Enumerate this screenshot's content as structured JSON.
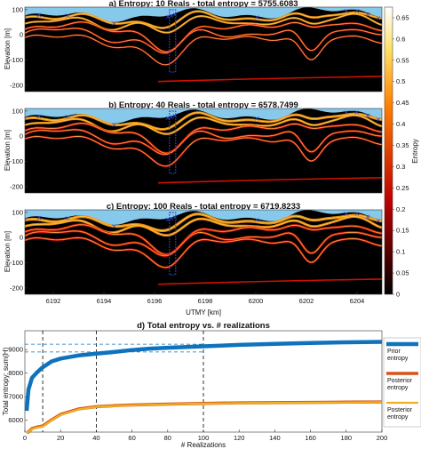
{
  "panels": [
    {
      "title": "a) Entropy: 10 Reals - total entropy = 5755.6083"
    },
    {
      "title": "b) Entropy: 40 Reals - total entropy = 6578.7499"
    },
    {
      "title": "c) Entropy: 100 Reals - total entropy = 6719.8233"
    }
  ],
  "section_ylabel": "Elevation [m]",
  "section_yticks": [
    "100",
    "0",
    "-100",
    "-200"
  ],
  "section_xlabel": "UTMY [km]",
  "section_xticks": [
    "6192",
    "6194",
    "6196",
    "6198",
    "6200",
    "6202",
    "6204"
  ],
  "colorbar": {
    "label": "Entropy",
    "ticks": [
      "0.65",
      "0.6",
      "0.55",
      "0.5",
      "0.45",
      "0.4",
      "0.35",
      "0.3",
      "0.25",
      "0.2",
      "0.15",
      "0.1",
      "0.05",
      "0"
    ]
  },
  "colors": {
    "sky": "#86c9eb",
    "ground": "#000000",
    "marker": "#3344cc",
    "prior": "#0f72bd",
    "posterior_orange": "#d95319",
    "posterior_yellow": "#edb120"
  },
  "chart_data": {
    "type": "line",
    "title": "d) Total entropy vs. # realizations",
    "xlabel": "# Realizations",
    "ylabel": "Total entropy: sum(H)",
    "xlim": [
      0,
      200
    ],
    "ylim": [
      5500,
      9800
    ],
    "xticks": [
      "0",
      "20",
      "40",
      "60",
      "80",
      "100",
      "120",
      "140",
      "160",
      "180",
      "200"
    ],
    "yticks": [
      "6000",
      "7000",
      "8000",
      "9000"
    ],
    "x": [
      1,
      2,
      4,
      7,
      10,
      15,
      20,
      30,
      40,
      50,
      60,
      70,
      80,
      100,
      120,
      140,
      160,
      180,
      200
    ],
    "series": [
      {
        "name": "Prior entropy",
        "values": [
          6400,
          7300,
          7800,
          8050,
          8250,
          8500,
          8620,
          8750,
          8830,
          8900,
          8980,
          9040,
          9080,
          9140,
          9200,
          9240,
          9280,
          9310,
          9330
        ]
      },
      {
        "name": "Posterior entropy",
        "values": [
          5400,
          5500,
          5650,
          5720,
          5760,
          6020,
          6250,
          6480,
          6580,
          6620,
          6650,
          6670,
          6690,
          6720,
          6740,
          6750,
          6760,
          6770,
          6780
        ]
      },
      {
        "name": "Posterior entropy",
        "values": [
          5380,
          5480,
          5630,
          5700,
          5740,
          6000,
          6230,
          6460,
          6570,
          6610,
          6640,
          6660,
          6680,
          6710,
          6730,
          6740,
          6750,
          6760,
          6770
        ]
      }
    ],
    "reference_x": [
      10,
      40,
      100
    ],
    "reference_y": [
      9230,
      8900
    ]
  }
}
